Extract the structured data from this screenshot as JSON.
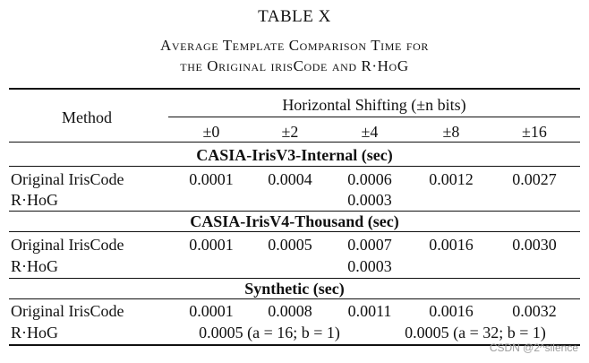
{
  "caption": {
    "table_label": "TABLE X",
    "line1": "Average Template Comparison Time for",
    "line2": "the Original irisCode and R·HoG"
  },
  "header": {
    "method": "Method",
    "group": "Horizontal Shifting (±n bits)",
    "shifts": [
      "±0",
      "±2",
      "±4",
      "±8",
      "±16"
    ]
  },
  "sections": [
    {
      "title": "CASIA-IrisV3-Internal (sec)",
      "rows": [
        {
          "method": "Original IrisCode",
          "values": [
            "0.0001",
            "0.0004",
            "0.0006",
            "0.0012",
            "0.0027"
          ]
        },
        {
          "method": "R·HoG",
          "merged": "0.0003"
        }
      ]
    },
    {
      "title": "CASIA-IrisV4-Thousand (sec)",
      "rows": [
        {
          "method": "Original IrisCode",
          "values": [
            "0.0001",
            "0.0005",
            "0.0007",
            "0.0016",
            "0.0030"
          ]
        },
        {
          "method": "R·HoG",
          "merged": "0.0003"
        }
      ]
    },
    {
      "title": "Synthetic (sec)",
      "rows": [
        {
          "method": "Original IrisCode",
          "values": [
            "0.0001",
            "0.0008",
            "0.0011",
            "0.0016",
            "0.0032"
          ]
        },
        {
          "method": "R·HoG",
          "merged_a": "0.0005 (a = 16; b = 1)",
          "merged_b": "0.0005 (a = 32; b = 1)"
        }
      ]
    }
  ],
  "watermark": "CSDN @2^silence"
}
